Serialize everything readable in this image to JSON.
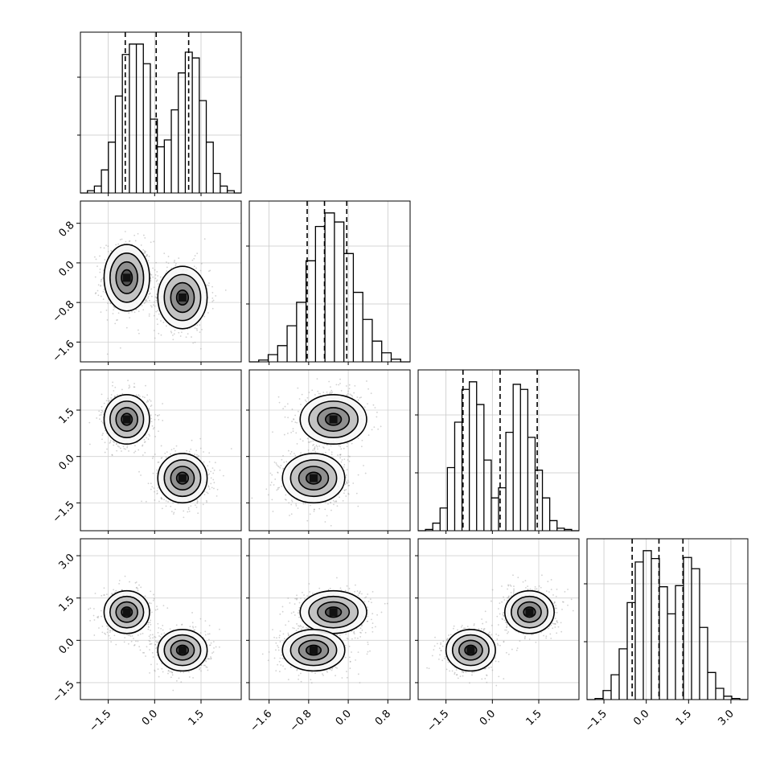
{
  "chart_data": {
    "type": "corner",
    "parameters": 4,
    "axes": [
      {
        "ticks": [
          -1.5,
          0.0,
          1.5
        ],
        "tick_labels": [
          "−1.5",
          "0.0",
          "1.5"
        ],
        "range": [
          -2.4,
          2.8
        ]
      },
      {
        "ticks": [
          -1.6,
          -0.8,
          0.0,
          0.8
        ],
        "tick_labels": [
          "−1.6",
          "−0.8",
          "0.0",
          "0.8"
        ],
        "range": [
          -2.0,
          1.25
        ]
      },
      {
        "ticks": [
          -1.5,
          0.0,
          1.5
        ],
        "tick_labels": [
          "−1.5",
          "0.0",
          "1.5"
        ],
        "range": [
          -2.4,
          2.8
        ]
      },
      {
        "ticks": [
          -1.5,
          0.0,
          1.5,
          3.0
        ],
        "tick_labels": [
          "−1.5",
          "0.0",
          "1.5",
          "3.0"
        ],
        "range": [
          -2.1,
          3.6
        ]
      }
    ],
    "quantiles": [
      [
        -0.95,
        0.05,
        1.1
      ],
      [
        -0.83,
        -0.48,
        -0.03
      ],
      [
        -0.95,
        0.25,
        1.45
      ],
      [
        -0.5,
        0.45,
        1.3
      ]
    ],
    "histograms": [
      {
        "counts": [
          2,
          6,
          20,
          44,
          84,
          120,
          129,
          129,
          112,
          64,
          40,
          46,
          72,
          104,
          122,
          117,
          80,
          44,
          17,
          6,
          2
        ]
      },
      {
        "counts": [
          2,
          8,
          18,
          40,
          66,
          112,
          150,
          165,
          155,
          120,
          77,
          47,
          23,
          10,
          3
        ]
      },
      {
        "counts": [
          1,
          6,
          18,
          50,
          86,
          112,
          118,
          100,
          56,
          26,
          34,
          78,
          116,
          112,
          74,
          48,
          26,
          8,
          2,
          1
        ]
      },
      {
        "counts": [
          1,
          8,
          22,
          45,
          86,
          122,
          132,
          125,
          100,
          76,
          101,
          126,
          116,
          64,
          24,
          10,
          3,
          1
        ]
      }
    ],
    "clusters": [
      {
        "centers": [
          -0.9,
          -0.3,
          1.2,
          1.0
        ],
        "sd": [
          0.35,
          0.32,
          0.38,
          0.36
        ],
        "weight": 0.5
      },
      {
        "centers": [
          0.9,
          -0.7,
          -0.7,
          -0.35
        ],
        "sd": [
          0.38,
          0.3,
          0.38,
          0.35
        ],
        "weight": 0.5
      }
    ],
    "grid": true
  }
}
